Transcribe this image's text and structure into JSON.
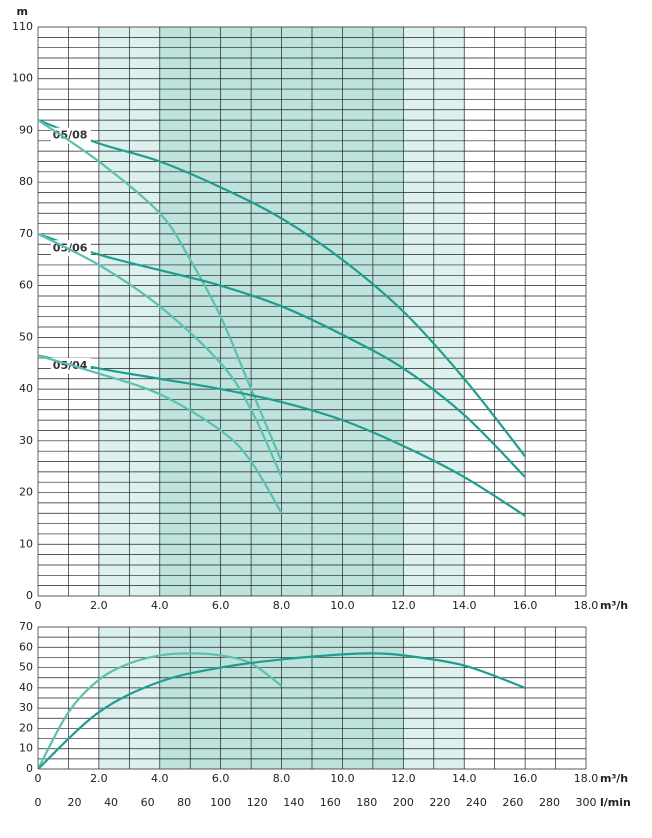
{
  "chart_data": [
    {
      "type": "line",
      "ylabel": "m",
      "xlabel": "m³/h",
      "xlim": [
        0,
        18
      ],
      "ylim": [
        0,
        110
      ],
      "xticks": [
        0,
        {
          "value": 2,
          "label": "2.0"
        },
        {
          "value": 4,
          "label": "4.0"
        },
        {
          "value": 6,
          "label": "6.0"
        },
        {
          "value": 8,
          "label": "8.0"
        },
        {
          "value": 10,
          "label": "10.0"
        },
        {
          "value": 12,
          "label": "12.0"
        },
        {
          "value": 14,
          "label": "14.0"
        },
        {
          "value": 16,
          "label": "16.0"
        },
        {
          "value": 18,
          "label": "18.0"
        }
      ],
      "yticks": [
        0,
        10,
        20,
        30,
        40,
        50,
        60,
        70,
        80,
        90,
        100,
        110
      ],
      "xgrid": [
        0,
        1,
        2,
        3,
        4,
        5,
        6,
        7,
        8,
        9,
        10,
        11,
        12,
        13,
        14,
        15,
        16,
        17,
        18
      ],
      "ygrid": [
        0,
        2,
        4,
        6,
        8,
        10,
        12,
        14,
        16,
        18,
        20,
        22,
        24,
        26,
        28,
        30,
        32,
        34,
        36,
        38,
        40,
        42,
        44,
        46,
        48,
        50,
        52,
        54,
        56,
        58,
        60,
        62,
        64,
        66,
        68,
        70,
        72,
        74,
        76,
        78,
        80,
        82,
        84,
        86,
        88,
        90,
        92,
        94,
        96,
        98,
        100,
        102,
        104,
        106,
        108,
        110
      ],
      "bands": [
        {
          "from": 2,
          "to": 4,
          "color": "#dcf1ed"
        },
        {
          "from": 4,
          "to": 12,
          "color": "#bde3dc"
        },
        {
          "from": 12,
          "to": 14,
          "color": "#dcf1ed"
        }
      ],
      "series": [
        {
          "name": "05/08",
          "color": "#1f9e90",
          "x": [
            0,
            2,
            4,
            6,
            8,
            10,
            12,
            14,
            16
          ],
          "values": [
            92,
            87.5,
            84,
            79,
            73,
            65,
            55,
            42,
            27
          ]
        },
        {
          "color": "#5cbfb0",
          "x": [
            0,
            2,
            4,
            5,
            6,
            7,
            8
          ],
          "values": [
            92,
            84,
            74,
            65,
            54,
            40,
            26
          ]
        },
        {
          "name": "05/06",
          "color": "#1f9e90",
          "x": [
            0,
            2,
            4,
            6,
            8,
            10,
            12,
            14,
            16
          ],
          "values": [
            70,
            66,
            63,
            60,
            56,
            50.5,
            44,
            35,
            23
          ]
        },
        {
          "color": "#5cbfb0",
          "x": [
            0,
            2,
            4,
            6,
            7,
            8
          ],
          "values": [
            70,
            64,
            56,
            45,
            36,
            23
          ]
        },
        {
          "name": "05/04",
          "color": "#1f9e90",
          "x": [
            0,
            2,
            4,
            6,
            8,
            10,
            12,
            14,
            16
          ],
          "values": [
            46.5,
            44,
            42,
            40,
            37.5,
            34,
            29,
            23,
            15.5
          ]
        },
        {
          "color": "#5cbfb0",
          "x": [
            0,
            2,
            4,
            6,
            7,
            8
          ],
          "values": [
            46.5,
            43,
            39,
            32,
            26,
            16
          ]
        }
      ]
    },
    {
      "type": "line",
      "xlabel": "m³/h",
      "x2label": "l/min",
      "xlim": [
        0,
        18
      ],
      "ylim": [
        0,
        70
      ],
      "x2lim": [
        0,
        300
      ],
      "xticks": [
        0,
        {
          "value": 2,
          "label": "2.0"
        },
        {
          "value": 4,
          "label": "4.0"
        },
        {
          "value": 6,
          "label": "6.0"
        },
        {
          "value": 8,
          "label": "8.0"
        },
        {
          "value": 10,
          "label": "10.0"
        },
        {
          "value": 12,
          "label": "12.0"
        },
        {
          "value": 14,
          "label": "14.0"
        },
        {
          "value": 16,
          "label": "16.0"
        },
        {
          "value": 18,
          "label": "18.0"
        }
      ],
      "x2ticks": [
        0,
        20,
        40,
        60,
        80,
        100,
        120,
        140,
        160,
        180,
        200,
        220,
        240,
        260,
        280,
        300
      ],
      "yticks": [
        0,
        10,
        20,
        30,
        40,
        50,
        60,
        70
      ],
      "xgrid": [
        0,
        1,
        2,
        3,
        4,
        5,
        6,
        7,
        8,
        9,
        10,
        11,
        12,
        13,
        14,
        15,
        16,
        17,
        18
      ],
      "ygrid": [
        0,
        5,
        10,
        15,
        20,
        25,
        30,
        35,
        40,
        45,
        50,
        55,
        60,
        65,
        70
      ],
      "bands": [
        {
          "from": 2,
          "to": 4,
          "color": "#dcf1ed"
        },
        {
          "from": 4,
          "to": 12,
          "color": "#bde3dc"
        },
        {
          "from": 12,
          "to": 14,
          "color": "#dcf1ed"
        }
      ],
      "series": [
        {
          "color": "#5cbfb0",
          "x": [
            0,
            1,
            2,
            3,
            4,
            5,
            6,
            7,
            8
          ],
          "values": [
            0,
            28,
            44,
            52,
            56,
            57,
            56,
            52,
            41
          ]
        },
        {
          "color": "#1f9e90",
          "x": [
            0,
            2,
            4,
            6,
            8,
            10,
            11,
            12,
            14,
            16
          ],
          "values": [
            0,
            28,
            43,
            50,
            54,
            56.5,
            57,
            56,
            51,
            40
          ]
        }
      ]
    }
  ]
}
